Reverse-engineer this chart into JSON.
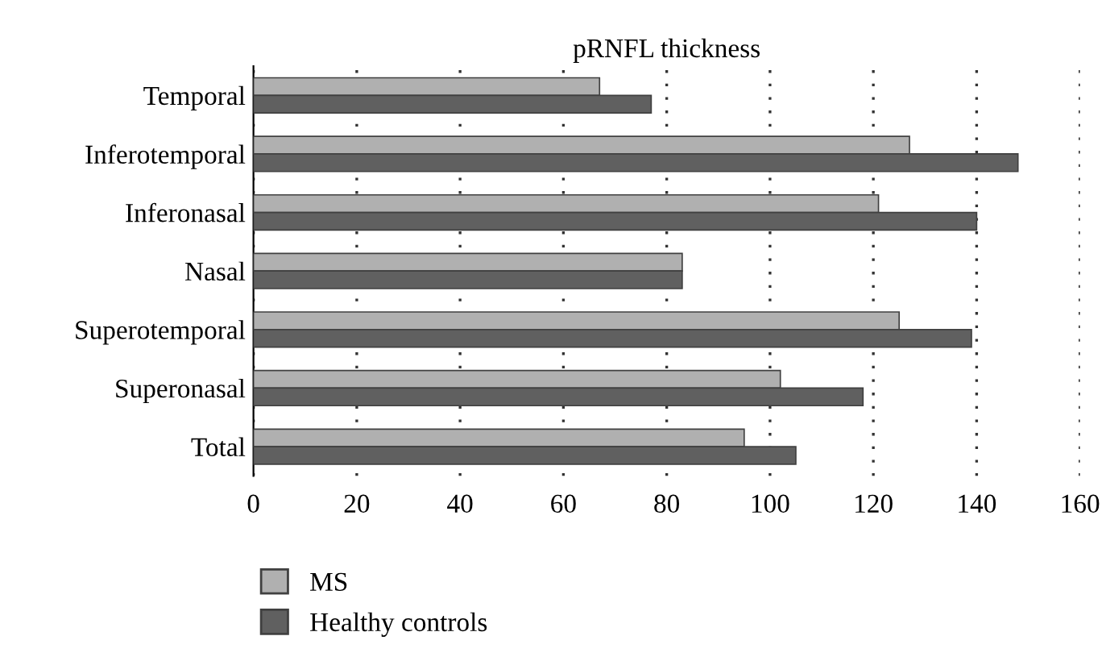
{
  "chart_data": {
    "type": "bar",
    "orientation": "horizontal",
    "title": "pRNFL thickness",
    "categories": [
      "Temporal",
      "Inferotemporal",
      "Inferonasal",
      "Nasal",
      "Superotemporal",
      "Superonasal",
      "Total"
    ],
    "series": [
      {
        "name": "MS",
        "color": "#b0b0b0",
        "values": [
          67,
          127,
          121,
          83,
          125,
          102,
          95
        ]
      },
      {
        "name": "Healthy controls",
        "color": "#606060",
        "values": [
          77,
          148,
          140,
          83,
          139,
          118,
          105
        ]
      }
    ],
    "xlim": [
      0,
      160
    ],
    "xticks": [
      0,
      20,
      40,
      60,
      80,
      100,
      120,
      140,
      160
    ],
    "grid": "x",
    "legend": "bottom left"
  }
}
